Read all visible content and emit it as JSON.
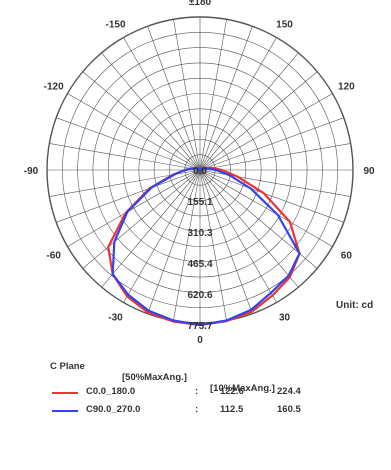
{
  "chart_data": {
    "type": "polar",
    "unit_label": "Unit: cd",
    "angle_labels": [
      "±180",
      "150",
      "120",
      "90",
      "60",
      "30",
      "0",
      "-30",
      "-60",
      "-90",
      "-120",
      "-150"
    ],
    "radial_labels": [
      "0.0",
      "155.1",
      "310.3",
      "465.4",
      "620.6",
      "775.7"
    ],
    "r_max": 775.7,
    "header": {
      "plane": "C Plane",
      "col1": "[50%MaxAng.]",
      "col2": "[10%MaxAng.]"
    },
    "series": [
      {
        "name": "C0.0_180.0",
        "color": "#ee3333",
        "beam50": "122.6",
        "beam10": "224.4",
        "points": [
          [
            0,
            775.7
          ],
          [
            10,
            768
          ],
          [
            20,
            755
          ],
          [
            30,
            725
          ],
          [
            40,
            700
          ],
          [
            50,
            650
          ],
          [
            60,
            520
          ],
          [
            70,
            340
          ],
          [
            80,
            190
          ],
          [
            90,
            110
          ],
          [
            100,
            60
          ],
          [
            110,
            30
          ],
          [
            120,
            10
          ],
          [
            180,
            0
          ],
          [
            240,
            10
          ],
          [
            250,
            25
          ],
          [
            260,
            45
          ],
          [
            270,
            75
          ],
          [
            280,
            140
          ],
          [
            290,
            270
          ],
          [
            300,
            430
          ],
          [
            310,
            600
          ],
          [
            320,
            680
          ],
          [
            330,
            730
          ],
          [
            340,
            760
          ],
          [
            350,
            770
          ]
        ]
      },
      {
        "name": "C90.0_270.0",
        "color": "#3344ee",
        "beam50": "112.5",
        "beam10": "160.5",
        "points": [
          [
            0,
            775.7
          ],
          [
            10,
            765
          ],
          [
            20,
            745
          ],
          [
            30,
            710
          ],
          [
            40,
            690
          ],
          [
            50,
            650
          ],
          [
            60,
            450
          ],
          [
            70,
            270
          ],
          [
            80,
            150
          ],
          [
            90,
            80
          ],
          [
            100,
            40
          ],
          [
            110,
            15
          ],
          [
            120,
            5
          ],
          [
            180,
            0
          ],
          [
            240,
            5
          ],
          [
            250,
            20
          ],
          [
            260,
            40
          ],
          [
            270,
            75
          ],
          [
            280,
            130
          ],
          [
            290,
            260
          ],
          [
            300,
            420
          ],
          [
            310,
            560
          ],
          [
            320,
            680
          ],
          [
            330,
            720
          ],
          [
            340,
            750
          ],
          [
            350,
            765
          ]
        ]
      }
    ],
    "colors": {
      "grid": "#555555",
      "text": "#333333"
    }
  }
}
